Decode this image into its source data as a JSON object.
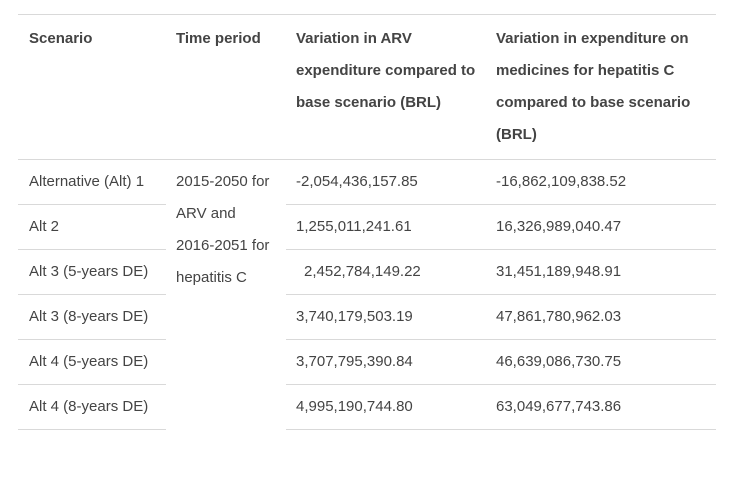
{
  "table": {
    "headers": [
      "Scenario",
      "Time period",
      "Variation in ARV expenditure compared to base scenario (BRL)",
      "Variation in expenditure on medicines for hepatitis C compared to base scenario (BRL)"
    ],
    "time_period": "2015-2050 for ARV and 2016-2051 for hepatitis C",
    "rows": [
      {
        "scenario": "Alternative (Alt) 1",
        "arv": "-2,054,436,157.85",
        "hepc": "-16,862,109,838.52"
      },
      {
        "scenario": "Alt 2",
        "arv": "1,255,011,241.61",
        "hepc": "16,326,989,040.47"
      },
      {
        "scenario": "Alt 3 (5-years DE)",
        "arv": "2,452,784,149.22",
        "hepc": "31,451,189,948.91"
      },
      {
        "scenario": "Alt 3 (8-years DE)",
        "arv": "3,740,179,503.19",
        "hepc": "47,861,780,962.03"
      },
      {
        "scenario": "Alt 4 (5-years DE)",
        "arv": "3,707,795,390.84",
        "hepc": "46,639,086,730.75"
      },
      {
        "scenario": "Alt 4 (8-years DE)",
        "arv": "4,995,190,744.80",
        "hepc": "63,049,677,743.86"
      }
    ]
  }
}
